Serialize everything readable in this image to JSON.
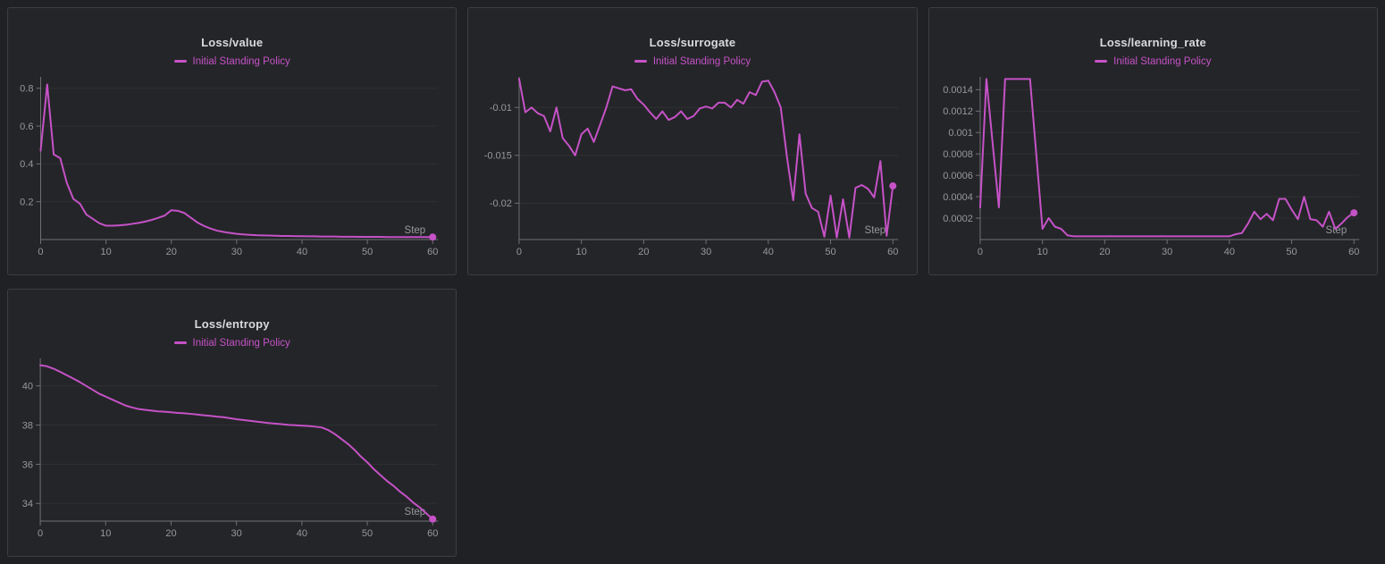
{
  "page": {
    "colors": {
      "background": "#202124",
      "panel_background": "#242528",
      "panel_border": "#3d3e42",
      "grid_line": "#2f3033",
      "axis_line": "#707174",
      "tick_text": "#97989b",
      "title_text": "#d9dadc",
      "accent": "#c552c7"
    }
  },
  "chart_data": [
    {
      "type": "line",
      "title": "Loss/value",
      "legend": "Initial Standing Policy",
      "xlabel": "Step",
      "xlim": [
        0,
        60
      ],
      "x_ticks": [
        0,
        10,
        20,
        30,
        40,
        50,
        60
      ],
      "y_ticks": [
        0.2,
        0.4,
        0.6,
        0.8
      ],
      "y_tick_labels": [
        "0.2",
        "0.4",
        "0.6",
        "0.8"
      ],
      "ylim": [
        0,
        0.86
      ],
      "grid": true,
      "legend_position": "top",
      "end_marker": true,
      "values": [
        0.47,
        0.82,
        0.45,
        0.43,
        0.3,
        0.215,
        0.19,
        0.132,
        0.109,
        0.086,
        0.073,
        0.073,
        0.075,
        0.078,
        0.083,
        0.088,
        0.095,
        0.104,
        0.115,
        0.127,
        0.155,
        0.152,
        0.14,
        0.115,
        0.09,
        0.072,
        0.058,
        0.047,
        0.04,
        0.035,
        0.03,
        0.027,
        0.025,
        0.023,
        0.022,
        0.021,
        0.02,
        0.019,
        0.019,
        0.018,
        0.018,
        0.017,
        0.017,
        0.016,
        0.016,
        0.016,
        0.015,
        0.015,
        0.015,
        0.014,
        0.014,
        0.014,
        0.014,
        0.013,
        0.013,
        0.013,
        0.013,
        0.013,
        0.013,
        0.013,
        0.013
      ]
    },
    {
      "type": "line",
      "title": "Loss/surrogate",
      "legend": "Initial Standing Policy",
      "xlabel": "Step",
      "xlim": [
        0,
        60
      ],
      "x_ticks": [
        0,
        10,
        20,
        30,
        40,
        50,
        60
      ],
      "y_ticks": [
        -0.01,
        -0.015,
        -0.02
      ],
      "y_tick_labels": [
        "-0.01",
        "-0.015",
        "-0.02"
      ],
      "ylim": [
        -0.0238,
        -0.0068
      ],
      "grid": true,
      "legend_position": "top",
      "end_marker": true,
      "values": [
        -0.007,
        -0.0105,
        -0.01,
        -0.0106,
        -0.0109,
        -0.0125,
        -0.01,
        -0.0132,
        -0.014,
        -0.015,
        -0.0128,
        -0.0122,
        -0.0136,
        -0.0118,
        -0.01,
        -0.0078,
        -0.008,
        -0.0082,
        -0.0081,
        -0.0091,
        -0.0097,
        -0.0105,
        -0.0112,
        -0.0104,
        -0.0113,
        -0.011,
        -0.0104,
        -0.0112,
        -0.0109,
        -0.0101,
        -0.0099,
        -0.0101,
        -0.0095,
        -0.0095,
        -0.01,
        -0.0092,
        -0.0096,
        -0.0084,
        -0.0087,
        -0.0073,
        -0.0072,
        -0.0084,
        -0.01,
        -0.0152,
        -0.0197,
        -0.0128,
        -0.019,
        -0.0205,
        -0.0209,
        -0.0235,
        -0.0192,
        -0.0236,
        -0.0196,
        -0.0236,
        -0.0184,
        -0.0181,
        -0.0185,
        -0.0194,
        -0.0156,
        -0.0234,
        -0.0182
      ]
    },
    {
      "type": "line",
      "title": "Loss/learning_rate",
      "legend": "Initial Standing Policy",
      "xlabel": "Step",
      "xlim": [
        0,
        60
      ],
      "x_ticks": [
        0,
        10,
        20,
        30,
        40,
        50,
        60
      ],
      "y_ticks": [
        0.0002,
        0.0004,
        0.0006,
        0.0008,
        0.001,
        0.0012,
        0.0014
      ],
      "y_tick_labels": [
        "0.0002",
        "0.0004",
        "0.0006",
        "0.0008",
        "0.001",
        "0.0012",
        "0.0014"
      ],
      "ylim": [
        0,
        0.00152
      ],
      "grid": true,
      "legend_position": "top",
      "end_marker": true,
      "values": [
        0.0003,
        0.0015,
        0.0009,
        0.0003,
        0.0015,
        0.0015,
        0.0015,
        0.0015,
        0.0015,
        0.0008,
        0.0001,
        0.0002,
        0.00012,
        0.0001,
        4e-05,
        3e-05,
        3e-05,
        3e-05,
        3e-05,
        3e-05,
        3e-05,
        3e-05,
        3e-05,
        3e-05,
        3e-05,
        3e-05,
        3e-05,
        3e-05,
        3e-05,
        3e-05,
        3e-05,
        3e-05,
        3e-05,
        3e-05,
        3e-05,
        3e-05,
        3e-05,
        3e-05,
        3e-05,
        3e-05,
        3e-05,
        5e-05,
        6e-05,
        0.00015,
        0.00026,
        0.00019,
        0.00024,
        0.00018,
        0.00038,
        0.00038,
        0.00028,
        0.00019,
        0.0004,
        0.00019,
        0.00018,
        0.00012,
        0.00026,
        0.0001,
        0.00015,
        0.00021,
        0.00025
      ]
    },
    {
      "type": "line",
      "title": "Loss/entropy",
      "legend": "Initial Standing Policy",
      "xlabel": "Step",
      "xlim": [
        0,
        60
      ],
      "x_ticks": [
        0,
        10,
        20,
        30,
        40,
        50,
        60
      ],
      "y_ticks": [
        34,
        36,
        38,
        40
      ],
      "y_tick_labels": [
        "34",
        "36",
        "38",
        "40"
      ],
      "ylim": [
        33.1,
        41.4
      ],
      "grid": true,
      "legend_position": "top",
      "end_marker": true,
      "values": [
        41.05,
        41.0,
        40.88,
        40.72,
        40.55,
        40.38,
        40.2,
        40.0,
        39.8,
        39.6,
        39.45,
        39.3,
        39.15,
        39.0,
        38.9,
        38.82,
        38.78,
        38.74,
        38.7,
        38.68,
        38.65,
        38.62,
        38.6,
        38.57,
        38.54,
        38.5,
        38.47,
        38.43,
        38.4,
        38.35,
        38.3,
        38.26,
        38.22,
        38.18,
        38.14,
        38.1,
        38.07,
        38.04,
        38.01,
        37.99,
        37.97,
        37.95,
        37.92,
        37.88,
        37.75,
        37.55,
        37.3,
        37.05,
        36.75,
        36.4,
        36.1,
        35.75,
        35.45,
        35.15,
        34.9,
        34.6,
        34.35,
        34.05,
        33.8,
        33.5,
        33.2
      ]
    }
  ]
}
